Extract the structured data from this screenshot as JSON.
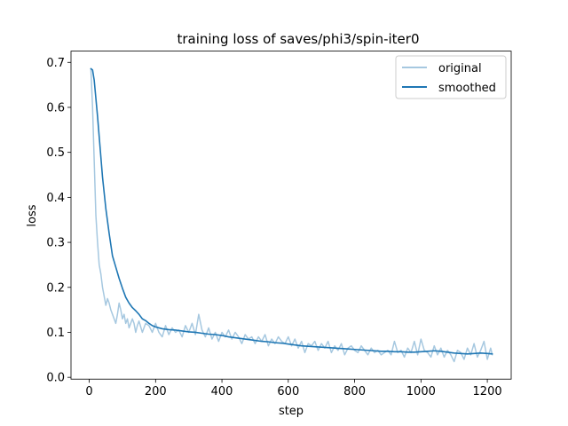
{
  "chart_data": {
    "type": "line",
    "title": "training loss of saves/phi3/spin-iter0",
    "xlabel": "step",
    "ylabel": "loss",
    "xlim": [
      -55,
      1272
    ],
    "ylim": [
      -0.004,
      0.725
    ],
    "xticks": [
      0,
      200,
      400,
      600,
      800,
      1000,
      1200
    ],
    "yticks": [
      0.0,
      0.1,
      0.2,
      0.3,
      0.4,
      0.5,
      0.6,
      0.7
    ],
    "xtick_labels": [
      "0",
      "200",
      "400",
      "600",
      "800",
      "1000",
      "1200"
    ],
    "ytick_labels": [
      "0.0",
      "0.1",
      "0.2",
      "0.3",
      "0.4",
      "0.5",
      "0.6",
      "0.7"
    ],
    "grid": false,
    "legend": "top-right",
    "series": [
      {
        "name": "original",
        "color": "#a6c8e0",
        "x": [
          5,
          10,
          15,
          20,
          25,
          30,
          35,
          40,
          45,
          50,
          55,
          60,
          65,
          70,
          75,
          80,
          85,
          90,
          95,
          100,
          105,
          110,
          115,
          120,
          125,
          130,
          135,
          140,
          145,
          150,
          160,
          170,
          180,
          190,
          200,
          210,
          220,
          230,
          240,
          250,
          260,
          270,
          280,
          290,
          300,
          310,
          320,
          330,
          340,
          350,
          360,
          370,
          380,
          390,
          400,
          410,
          420,
          430,
          440,
          450,
          460,
          470,
          480,
          490,
          500,
          510,
          520,
          530,
          540,
          550,
          560,
          570,
          580,
          590,
          600,
          610,
          620,
          630,
          640,
          650,
          660,
          670,
          680,
          690,
          700,
          710,
          720,
          730,
          740,
          750,
          760,
          770,
          780,
          790,
          800,
          810,
          820,
          830,
          840,
          850,
          860,
          870,
          880,
          890,
          900,
          910,
          920,
          930,
          940,
          950,
          960,
          970,
          980,
          990,
          1000,
          1010,
          1020,
          1030,
          1040,
          1050,
          1060,
          1070,
          1080,
          1090,
          1100,
          1110,
          1120,
          1130,
          1140,
          1150,
          1160,
          1170,
          1180,
          1190,
          1200,
          1210,
          1215
        ],
        "values": [
          0.685,
          0.6,
          0.48,
          0.36,
          0.3,
          0.25,
          0.23,
          0.2,
          0.18,
          0.16,
          0.175,
          0.165,
          0.15,
          0.14,
          0.13,
          0.12,
          0.14,
          0.165,
          0.15,
          0.13,
          0.14,
          0.12,
          0.13,
          0.11,
          0.12,
          0.13,
          0.12,
          0.1,
          0.115,
          0.125,
          0.1,
          0.12,
          0.115,
          0.1,
          0.12,
          0.1,
          0.09,
          0.115,
          0.095,
          0.11,
          0.1,
          0.105,
          0.09,
          0.115,
          0.1,
          0.12,
          0.095,
          0.14,
          0.105,
          0.09,
          0.11,
          0.085,
          0.1,
          0.08,
          0.1,
          0.09,
          0.105,
          0.085,
          0.1,
          0.09,
          0.075,
          0.095,
          0.085,
          0.09,
          0.075,
          0.09,
          0.08,
          0.095,
          0.07,
          0.085,
          0.075,
          0.09,
          0.08,
          0.075,
          0.09,
          0.07,
          0.085,
          0.065,
          0.08,
          0.055,
          0.075,
          0.07,
          0.08,
          0.06,
          0.075,
          0.065,
          0.08,
          0.055,
          0.07,
          0.06,
          0.075,
          0.05,
          0.065,
          0.07,
          0.06,
          0.055,
          0.07,
          0.06,
          0.05,
          0.065,
          0.055,
          0.06,
          0.05,
          0.055,
          0.06,
          0.05,
          0.08,
          0.055,
          0.06,
          0.045,
          0.065,
          0.055,
          0.08,
          0.05,
          0.085,
          0.06,
          0.055,
          0.045,
          0.07,
          0.05,
          0.065,
          0.045,
          0.06,
          0.05,
          0.035,
          0.06,
          0.055,
          0.04,
          0.065,
          0.05,
          0.075,
          0.045,
          0.06,
          0.08,
          0.04,
          0.065,
          0.05
        ]
      },
      {
        "name": "smoothed",
        "color": "#1f77b4",
        "x": [
          5,
          10,
          15,
          20,
          25,
          30,
          35,
          40,
          45,
          50,
          60,
          70,
          80,
          90,
          100,
          110,
          120,
          130,
          140,
          150,
          160,
          170,
          180,
          190,
          200,
          220,
          240,
          260,
          280,
          300,
          320,
          340,
          360,
          380,
          400,
          420,
          440,
          460,
          480,
          500,
          520,
          540,
          560,
          580,
          600,
          620,
          640,
          660,
          680,
          700,
          720,
          740,
          760,
          780,
          800,
          820,
          840,
          860,
          880,
          900,
          920,
          940,
          960,
          980,
          1000,
          1020,
          1040,
          1060,
          1080,
          1100,
          1120,
          1140,
          1160,
          1180,
          1200,
          1215
        ],
        "values": [
          0.686,
          0.683,
          0.66,
          0.62,
          0.58,
          0.535,
          0.49,
          0.445,
          0.41,
          0.375,
          0.32,
          0.27,
          0.245,
          0.22,
          0.198,
          0.178,
          0.165,
          0.155,
          0.148,
          0.14,
          0.13,
          0.126,
          0.12,
          0.115,
          0.112,
          0.108,
          0.106,
          0.105,
          0.103,
          0.101,
          0.1,
          0.098,
          0.096,
          0.095,
          0.093,
          0.09,
          0.088,
          0.086,
          0.084,
          0.082,
          0.08,
          0.079,
          0.077,
          0.076,
          0.074,
          0.072,
          0.07,
          0.069,
          0.068,
          0.067,
          0.066,
          0.065,
          0.064,
          0.063,
          0.062,
          0.061,
          0.06,
          0.059,
          0.058,
          0.058,
          0.057,
          0.057,
          0.056,
          0.056,
          0.057,
          0.058,
          0.059,
          0.058,
          0.056,
          0.054,
          0.053,
          0.052,
          0.053,
          0.054,
          0.053,
          0.052
        ]
      }
    ]
  }
}
